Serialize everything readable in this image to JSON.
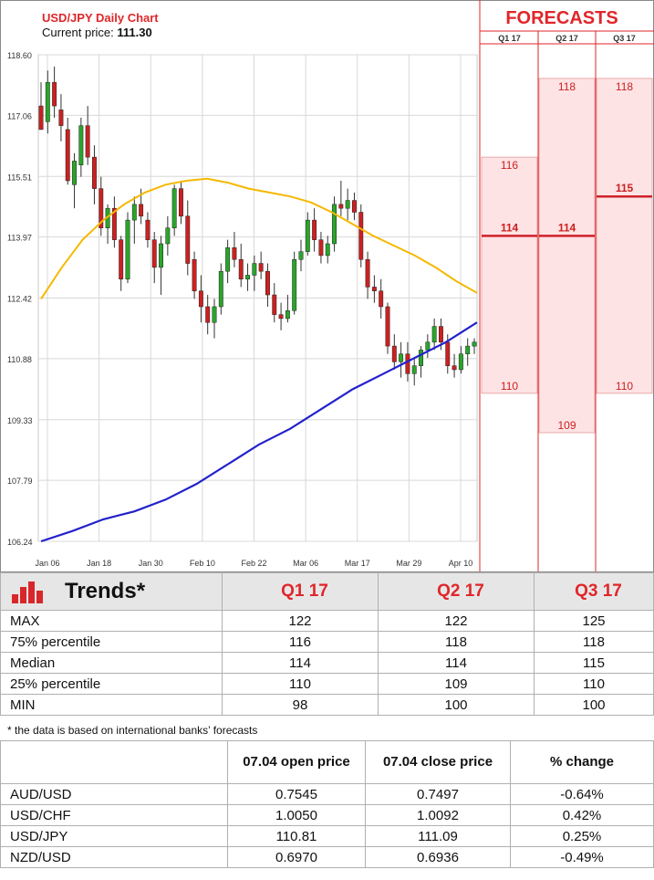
{
  "chart": {
    "title": "USD/JPY Daily Chart",
    "subtitle_label": "Current price: ",
    "current_price": "111.30",
    "forecasts_title": "FORECASTS",
    "colors": {
      "up": "#2aa52a",
      "down": "#cc2020",
      "ma_fast": "#f5b800",
      "ma_slow": "#2222cc",
      "accent": "#e0262a"
    }
  },
  "chart_data": {
    "type": "candlestick",
    "x_tick_labels": [
      "Jan 06",
      "Jan 18",
      "Jan 30",
      "Feb 10",
      "Feb 22",
      "Mar 06",
      "Mar 17",
      "Mar 29",
      "Apr 10"
    ],
    "y_tick_labels": [
      "118.60",
      "117.06",
      "115.51",
      "113.97",
      "112.42",
      "110.88",
      "109.33",
      "107.79",
      "106.24"
    ],
    "ylim": [
      106.24,
      118.6
    ],
    "grid": true,
    "candles": [
      [
        117.3,
        117.9,
        116.8,
        116.7
      ],
      [
        116.9,
        118.2,
        116.6,
        117.9
      ],
      [
        117.9,
        118.3,
        117.0,
        117.3
      ],
      [
        117.2,
        117.6,
        116.4,
        116.8
      ],
      [
        116.7,
        117.0,
        115.3,
        115.4
      ],
      [
        115.3,
        116.1,
        114.7,
        115.9
      ],
      [
        115.8,
        117.0,
        115.5,
        116.8
      ],
      [
        116.8,
        117.3,
        115.8,
        116.0
      ],
      [
        116.0,
        116.3,
        114.8,
        115.2
      ],
      [
        115.2,
        115.5,
        114.0,
        114.2
      ],
      [
        114.2,
        114.8,
        113.8,
        114.7
      ],
      [
        114.7,
        115.0,
        113.7,
        113.9
      ],
      [
        113.9,
        114.0,
        112.6,
        112.9
      ],
      [
        112.9,
        114.6,
        112.8,
        114.4
      ],
      [
        114.4,
        115.0,
        113.8,
        114.8
      ],
      [
        114.8,
        115.2,
        114.3,
        114.5
      ],
      [
        114.4,
        114.6,
        113.7,
        113.9
      ],
      [
        113.9,
        114.1,
        112.8,
        113.2
      ],
      [
        113.2,
        114.0,
        112.5,
        113.8
      ],
      [
        113.8,
        114.5,
        113.5,
        114.2
      ],
      [
        114.2,
        115.3,
        114.0,
        115.2
      ],
      [
        115.2,
        115.4,
        114.3,
        114.5
      ],
      [
        114.5,
        114.9,
        113.0,
        113.3
      ],
      [
        113.4,
        113.6,
        112.4,
        112.6
      ],
      [
        112.6,
        113.0,
        111.8,
        112.2
      ],
      [
        112.2,
        112.5,
        111.5,
        111.8
      ],
      [
        111.8,
        112.4,
        111.4,
        112.2
      ],
      [
        112.2,
        113.3,
        112.0,
        113.1
      ],
      [
        113.1,
        113.9,
        112.8,
        113.7
      ],
      [
        113.7,
        114.1,
        113.2,
        113.4
      ],
      [
        113.4,
        113.8,
        112.7,
        112.9
      ],
      [
        112.9,
        113.3,
        112.6,
        113.0
      ],
      [
        113.0,
        113.5,
        112.6,
        113.3
      ],
      [
        113.3,
        113.6,
        112.9,
        113.1
      ],
      [
        113.1,
        113.3,
        112.2,
        112.5
      ],
      [
        112.5,
        112.8,
        111.8,
        112.0
      ],
      [
        112.0,
        112.3,
        111.6,
        111.9
      ],
      [
        111.9,
        112.5,
        111.8,
        112.1
      ],
      [
        112.1,
        113.6,
        112.0,
        113.4
      ],
      [
        113.4,
        113.9,
        113.1,
        113.6
      ],
      [
        113.6,
        114.6,
        113.5,
        114.4
      ],
      [
        114.4,
        114.7,
        113.6,
        113.9
      ],
      [
        113.9,
        114.1,
        113.3,
        113.5
      ],
      [
        113.5,
        114.0,
        113.3,
        113.8
      ],
      [
        113.8,
        115.0,
        113.6,
        114.8
      ],
      [
        114.8,
        115.4,
        114.5,
        114.7
      ],
      [
        114.7,
        115.2,
        114.4,
        114.9
      ],
      [
        114.9,
        115.1,
        114.4,
        114.6
      ],
      [
        114.6,
        114.8,
        113.2,
        113.4
      ],
      [
        113.4,
        113.6,
        112.4,
        112.7
      ],
      [
        112.7,
        113.0,
        112.3,
        112.6
      ],
      [
        112.6,
        112.9,
        111.9,
        112.2
      ],
      [
        112.2,
        112.3,
        111.0,
        111.2
      ],
      [
        111.2,
        111.5,
        110.6,
        110.8
      ],
      [
        110.8,
        111.3,
        110.4,
        111.0
      ],
      [
        111.0,
        111.3,
        110.3,
        110.5
      ],
      [
        110.5,
        110.9,
        110.2,
        110.7
      ],
      [
        110.7,
        111.2,
        110.4,
        111.1
      ],
      [
        111.1,
        111.5,
        110.9,
        111.3
      ],
      [
        111.3,
        111.9,
        111.1,
        111.7
      ],
      [
        111.7,
        111.9,
        111.1,
        111.3
      ],
      [
        111.3,
        111.5,
        110.5,
        110.7
      ],
      [
        110.7,
        111.0,
        110.4,
        110.6
      ],
      [
        110.6,
        111.2,
        110.5,
        111.0
      ],
      [
        111.0,
        111.4,
        110.7,
        111.2
      ],
      [
        111.2,
        111.4,
        111.0,
        111.3
      ]
    ],
    "series": [
      {
        "values": [
          112.4,
          113.2,
          113.9,
          114.4,
          114.8,
          115.1,
          115.3,
          115.4,
          115.45,
          115.35,
          115.2,
          115.1,
          115.0,
          114.85,
          114.6,
          114.3,
          114.0,
          113.75,
          113.5,
          113.2,
          112.85,
          112.55
        ]
      },
      {
        "values": [
          106.24,
          106.5,
          106.8,
          107.0,
          107.3,
          107.7,
          108.2,
          108.7,
          109.1,
          109.6,
          110.1,
          110.5,
          110.9,
          111.3,
          111.8
        ]
      }
    ]
  },
  "forecasts": {
    "columns": [
      {
        "label": "Q1 17",
        "max": 116,
        "median": 114,
        "min": 110,
        "max_label": "116",
        "median_label": "114",
        "min_label": "110"
      },
      {
        "label": "Q2 17",
        "max": 118,
        "median": 114,
        "min": 109,
        "max_label": "118",
        "median_label": "114",
        "min_label": "109"
      },
      {
        "label": "Q3 17",
        "max": 118,
        "median": 115,
        "min": 110,
        "max_label": "118",
        "median_label": "115",
        "min_label": "110"
      }
    ]
  },
  "trends": {
    "title": "Trends*",
    "headers": [
      "Q1 17",
      "Q2 17",
      "Q3 17"
    ],
    "rows": [
      {
        "label": "MAX",
        "values": [
          "122",
          "122",
          "125"
        ]
      },
      {
        "label": "75% percentile",
        "values": [
          "116",
          "118",
          "118"
        ]
      },
      {
        "label": "Median",
        "values": [
          "114",
          "114",
          "115"
        ]
      },
      {
        "label": "25% percentile",
        "values": [
          "110",
          "109",
          "110"
        ]
      },
      {
        "label": "MIN",
        "values": [
          "98",
          "100",
          "100"
        ]
      }
    ],
    "note": "* the data is based on international banks’ forecasts"
  },
  "rates": {
    "headers": [
      "",
      "07.04 open price",
      "07.04 close price",
      "% change"
    ],
    "rows": [
      {
        "pair": "AUD/USD",
        "open": "0.7545",
        "close": "0.7497",
        "change": "-0.64%",
        "dir": "neg"
      },
      {
        "pair": "USD/CHF",
        "open": "1.0050",
        "close": "1.0092",
        "change": "0.42%",
        "dir": "pos"
      },
      {
        "pair": "USD/JPY",
        "open": "110.81",
        "close": "111.09",
        "change": "0.25%",
        "dir": "pos"
      },
      {
        "pair": "NZD/USD",
        "open": "0.6970",
        "close": "0.6936",
        "change": "-0.49%",
        "dir": "neg"
      }
    ]
  }
}
